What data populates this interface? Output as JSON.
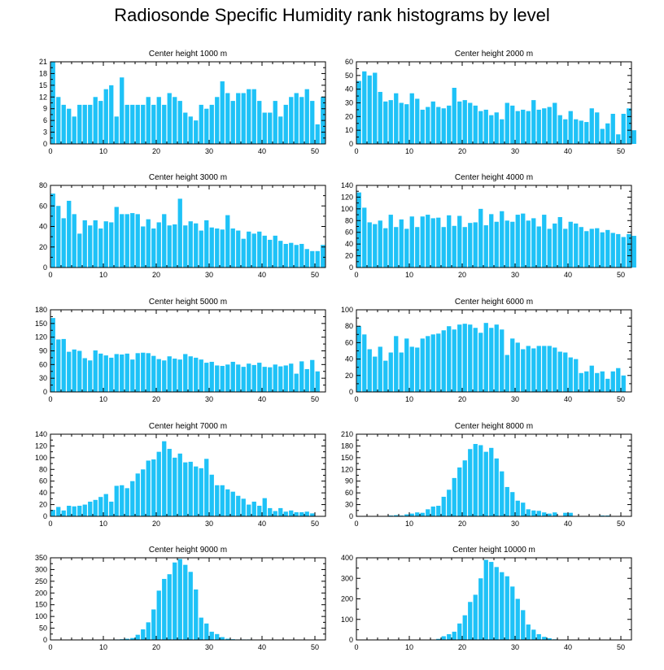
{
  "title": "Radiosonde Specific Humidity rank histograms by level",
  "colors": {
    "bar": "#1ec2f7",
    "axis": "#000000",
    "background": "#ffffff"
  },
  "chart_data": [
    {
      "type": "bar",
      "title": "Center height 1000 m",
      "ylim": [
        0,
        21
      ],
      "yticks": [
        0,
        3,
        6,
        9,
        12,
        15,
        18,
        21
      ],
      "xlim": [
        0,
        52
      ],
      "xticks": [
        0,
        10,
        20,
        30,
        40,
        50
      ],
      "values": [
        21,
        12,
        10,
        9,
        7,
        10,
        10,
        10,
        12,
        11,
        14,
        15,
        7,
        17,
        10,
        10,
        10,
        10,
        12,
        10,
        12,
        10,
        13,
        12,
        11,
        8,
        7,
        6,
        10,
        9,
        10,
        12,
        16,
        13,
        11,
        13,
        13,
        14,
        14,
        11,
        8,
        8,
        11,
        7,
        10,
        12,
        13,
        12,
        14,
        11,
        5,
        12
      ]
    },
    {
      "type": "bar",
      "title": "Center height 2000 m",
      "ylim": [
        0,
        60
      ],
      "yticks": [
        0,
        10,
        20,
        30,
        40,
        50,
        60
      ],
      "xlim": [
        0,
        52
      ],
      "xticks": [
        0,
        10,
        20,
        30,
        40,
        50
      ],
      "values": [
        46,
        53,
        50,
        52,
        38,
        31,
        32,
        37,
        30,
        29,
        37,
        33,
        25,
        27,
        31,
        27,
        26,
        28,
        41,
        31,
        32,
        30,
        28,
        24,
        25,
        21,
        23,
        18,
        30,
        28,
        24,
        25,
        24,
        32,
        25,
        26,
        27,
        30,
        21,
        18,
        24,
        18,
        17,
        16,
        26,
        23,
        11,
        15,
        22,
        7,
        22,
        26,
        10
      ]
    },
    {
      "type": "bar",
      "title": "Center height 3000 m",
      "ylim": [
        0,
        80
      ],
      "yticks": [
        0,
        20,
        40,
        60,
        80
      ],
      "xlim": [
        0,
        52
      ],
      "xticks": [
        0,
        10,
        20,
        30,
        40,
        50
      ],
      "values": [
        72,
        60,
        48,
        65,
        52,
        33,
        46,
        41,
        46,
        38,
        45,
        44,
        59,
        52,
        52,
        53,
        52,
        40,
        47,
        38,
        44,
        52,
        41,
        42,
        67,
        41,
        45,
        43,
        36,
        46,
        39,
        38,
        37,
        51,
        38,
        36,
        28,
        35,
        33,
        35,
        31,
        27,
        31,
        26,
        23,
        24,
        22,
        23,
        18,
        16,
        16,
        22
      ]
    },
    {
      "type": "bar",
      "title": "Center height 4000 m",
      "ylim": [
        0,
        140
      ],
      "yticks": [
        0,
        20,
        40,
        60,
        80,
        100,
        120,
        140
      ],
      "xlim": [
        0,
        52
      ],
      "xticks": [
        0,
        10,
        20,
        30,
        40,
        50
      ],
      "values": [
        128,
        102,
        77,
        74,
        80,
        67,
        90,
        69,
        82,
        66,
        87,
        69,
        87,
        90,
        84,
        85,
        69,
        89,
        71,
        88,
        69,
        76,
        77,
        100,
        72,
        91,
        78,
        96,
        80,
        78,
        90,
        92,
        80,
        84,
        70,
        90,
        66,
        75,
        86,
        66,
        78,
        75,
        69,
        62,
        66,
        67,
        60,
        64,
        59,
        57,
        52,
        57,
        54
      ]
    },
    {
      "type": "bar",
      "title": "Center height 5000 m",
      "ylim": [
        0,
        180
      ],
      "yticks": [
        0,
        30,
        60,
        90,
        120,
        150,
        180
      ],
      "xlim": [
        0,
        52
      ],
      "xticks": [
        0,
        10,
        20,
        30,
        40,
        50
      ],
      "values": [
        162,
        115,
        116,
        88,
        93,
        90,
        74,
        69,
        91,
        84,
        80,
        75,
        83,
        82,
        84,
        71,
        85,
        86,
        85,
        79,
        72,
        69,
        78,
        73,
        71,
        83,
        78,
        75,
        71,
        64,
        66,
        58,
        57,
        60,
        66,
        60,
        55,
        62,
        59,
        64,
        55,
        54,
        60,
        56,
        58,
        62,
        40,
        67,
        50,
        70,
        45
      ]
    },
    {
      "type": "bar",
      "title": "Center height 6000 m",
      "ylim": [
        0,
        100
      ],
      "yticks": [
        0,
        20,
        40,
        60,
        80,
        100
      ],
      "xlim": [
        0,
        52
      ],
      "xticks": [
        0,
        10,
        20,
        30,
        40,
        50
      ],
      "values": [
        80,
        70,
        52,
        43,
        55,
        38,
        48,
        68,
        48,
        65,
        55,
        54,
        65,
        68,
        70,
        71,
        75,
        80,
        76,
        82,
        83,
        82,
        78,
        72,
        84,
        78,
        82,
        76,
        45,
        65,
        60,
        52,
        56,
        53,
        56,
        56,
        56,
        54,
        49,
        48,
        42,
        40,
        23,
        25,
        32,
        23,
        25,
        16,
        25,
        29,
        20
      ]
    },
    {
      "type": "bar",
      "title": "Center height 7000 m",
      "ylim": [
        0,
        140
      ],
      "yticks": [
        0,
        20,
        40,
        60,
        80,
        100,
        120,
        140
      ],
      "xlim": [
        0,
        52
      ],
      "xticks": [
        0,
        10,
        20,
        30,
        40,
        50
      ],
      "values": [
        11,
        16,
        10,
        18,
        17,
        18,
        20,
        25,
        28,
        33,
        38,
        25,
        52,
        53,
        48,
        60,
        73,
        80,
        95,
        97,
        110,
        128,
        115,
        100,
        107,
        92,
        93,
        85,
        82,
        98,
        71,
        53,
        53,
        46,
        42,
        35,
        30,
        20,
        25,
        18,
        31,
        14,
        9,
        14,
        8,
        10,
        7,
        7,
        8,
        5
      ]
    },
    {
      "type": "bar",
      "title": "Center height 8000 m",
      "ylim": [
        0,
        210
      ],
      "yticks": [
        0,
        30,
        60,
        90,
        120,
        150,
        180,
        210
      ],
      "xlim": [
        0,
        52
      ],
      "xticks": [
        0,
        10,
        20,
        30,
        40,
        50
      ],
      "values": [
        0,
        0,
        0,
        0,
        0,
        0,
        2,
        3,
        2,
        5,
        7,
        10,
        9,
        18,
        25,
        27,
        50,
        68,
        98,
        125,
        143,
        172,
        185,
        182,
        165,
        175,
        148,
        115,
        75,
        62,
        40,
        35,
        18,
        15,
        14,
        10,
        7,
        10,
        0,
        9,
        9,
        0,
        0,
        0,
        0,
        0,
        2,
        2,
        0,
        0,
        0,
        0
      ]
    },
    {
      "type": "bar",
      "title": "Center height 9000 m",
      "ylim": [
        0,
        350
      ],
      "yticks": [
        0,
        50,
        100,
        150,
        200,
        250,
        300,
        350
      ],
      "xlim": [
        0,
        52
      ],
      "xticks": [
        0,
        10,
        20,
        30,
        40,
        50
      ],
      "values": [
        0,
        0,
        0,
        0,
        0,
        0,
        0,
        0,
        0,
        0,
        0,
        0,
        2,
        3,
        5,
        8,
        22,
        45,
        75,
        130,
        210,
        260,
        280,
        330,
        345,
        320,
        290,
        215,
        95,
        70,
        35,
        25,
        12,
        5,
        3,
        2,
        2,
        2,
        0,
        0,
        0,
        0,
        0,
        0,
        0,
        0,
        0,
        0,
        0,
        0,
        0,
        0
      ]
    },
    {
      "type": "bar",
      "title": "Center height 10000 m",
      "ylim": [
        0,
        400
      ],
      "yticks": [
        0,
        100,
        200,
        300,
        400
      ],
      "xlim": [
        0,
        52
      ],
      "xticks": [
        0,
        10,
        20,
        30,
        40,
        50
      ],
      "values": [
        0,
        0,
        0,
        0,
        0,
        0,
        0,
        0,
        0,
        0,
        0,
        0,
        0,
        0,
        2,
        5,
        18,
        28,
        40,
        80,
        120,
        185,
        220,
        300,
        390,
        380,
        355,
        330,
        310,
        260,
        200,
        145,
        75,
        50,
        28,
        15,
        8,
        3,
        0,
        0,
        0,
        0,
        0,
        0,
        0,
        0,
        0,
        0,
        0,
        0,
        0,
        0
      ]
    }
  ]
}
